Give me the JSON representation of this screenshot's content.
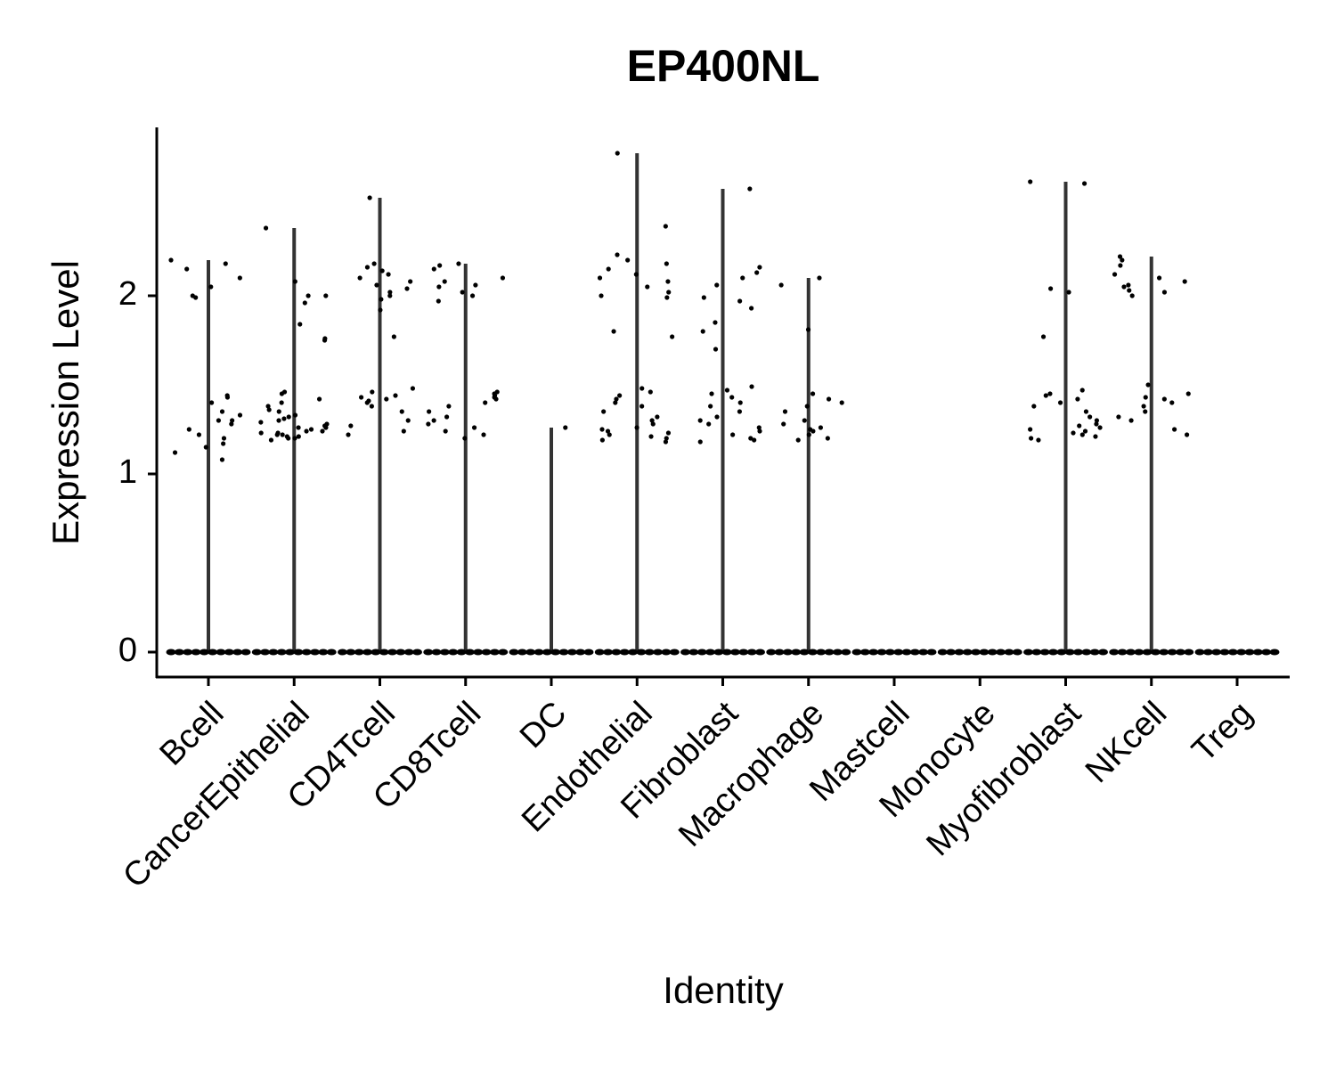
{
  "chart_data": {
    "type": "violin",
    "title": "EP400NL",
    "x_label": "Identity",
    "y_label": "Expression Level",
    "categories": [
      "Bcell",
      "CancerEpithelial",
      "CD4Tcell",
      "CD8Tcell",
      "DC",
      "Endothelial",
      "Fibroblast",
      "Macrophage",
      "Mastcell",
      "Monocyte",
      "Myofibroblast",
      "NKcell",
      "Treg"
    ],
    "values": [
      [
        2.2,
        2.1,
        2.0,
        2.15,
        2.18,
        2.05,
        1.99,
        1.44,
        1.43,
        1.4,
        1.35,
        1.3,
        1.3,
        1.25,
        1.22,
        1.2,
        1.17,
        1.12,
        1.08,
        1.15,
        1.33,
        1.28,
        0,
        0,
        0,
        0,
        0,
        0,
        0,
        0,
        0,
        0
      ],
      [
        2.38,
        2.08,
        2.0,
        2.0,
        1.96,
        1.84,
        1.76,
        1.75,
        1.46,
        1.45,
        1.42,
        1.4,
        1.38,
        1.35,
        1.32,
        1.3,
        1.28,
        1.26,
        1.25,
        1.24,
        1.23,
        1.22,
        1.21,
        1.2,
        1.2,
        1.19,
        1.27,
        1.29,
        1.31,
        1.22,
        1.24,
        1.26,
        1.33,
        1.36,
        1.21,
        1.23,
        0,
        0,
        0,
        0,
        0,
        0,
        0,
        0,
        0,
        0
      ],
      [
        2.55,
        2.18,
        2.16,
        2.14,
        2.12,
        2.1,
        2.08,
        2.06,
        2.04,
        2.02,
        2.0,
        1.98,
        1.92,
        1.77,
        1.48,
        1.46,
        1.44,
        1.43,
        1.42,
        1.41,
        1.4,
        1.38,
        1.35,
        1.3,
        1.27,
        1.24,
        1.22,
        0,
        0,
        0,
        0,
        0,
        0,
        0,
        0,
        0,
        0
      ],
      [
        2.18,
        2.17,
        2.15,
        2.1,
        2.08,
        2.06,
        2.05,
        2.02,
        2.0,
        1.97,
        1.46,
        1.45,
        1.44,
        1.43,
        1.42,
        1.4,
        1.38,
        1.35,
        1.32,
        1.3,
        1.28,
        1.26,
        1.24,
        1.22,
        1.2,
        0,
        0,
        0,
        0,
        0,
        0,
        0,
        0,
        0,
        0
      ],
      [
        1.26,
        0,
        0,
        0,
        0,
        0,
        0,
        0,
        0,
        0,
        0
      ],
      [
        2.8,
        2.39,
        2.23,
        2.2,
        2.18,
        2.15,
        2.12,
        2.1,
        2.08,
        2.05,
        2.02,
        2.0,
        1.99,
        1.8,
        1.77,
        1.48,
        1.46,
        1.44,
        1.42,
        1.4,
        1.38,
        1.35,
        1.32,
        1.3,
        1.28,
        1.26,
        1.25,
        1.24,
        1.23,
        1.22,
        1.21,
        1.2,
        1.19,
        1.18,
        0,
        0,
        0,
        0,
        0,
        0,
        0,
        0,
        0,
        0
      ],
      [
        2.6,
        2.16,
        2.13,
        2.1,
        2.06,
        1.99,
        1.97,
        1.93,
        1.85,
        1.8,
        1.7,
        1.49,
        1.47,
        1.45,
        1.43,
        1.4,
        1.38,
        1.35,
        1.32,
        1.3,
        1.28,
        1.26,
        1.24,
        1.22,
        1.2,
        1.19,
        1.18,
        0,
        0,
        0,
        0,
        0,
        0,
        0,
        0,
        0,
        0
      ],
      [
        2.1,
        2.06,
        1.81,
        1.45,
        1.42,
        1.4,
        1.38,
        1.35,
        1.3,
        1.28,
        1.26,
        1.25,
        1.24,
        1.22,
        1.2,
        1.19,
        0,
        0,
        0,
        0,
        0,
        0,
        0,
        0,
        0,
        0
      ],
      [
        0,
        0,
        0,
        0,
        0,
        0,
        0,
        0,
        0,
        0
      ],
      [
        0,
        0,
        0,
        0,
        0,
        0,
        0,
        0,
        0,
        0
      ],
      [
        2.63,
        2.64,
        2.04,
        2.02,
        1.77,
        1.47,
        1.45,
        1.44,
        1.42,
        1.4,
        1.38,
        1.35,
        1.32,
        1.3,
        1.28,
        1.27,
        1.26,
        1.25,
        1.24,
        1.23,
        1.22,
        1.21,
        1.2,
        1.19,
        0,
        0,
        0,
        0,
        0,
        0,
        0,
        0,
        0,
        0
      ],
      [
        2.22,
        2.2,
        2.17,
        2.12,
        2.1,
        2.08,
        2.06,
        2.05,
        2.03,
        2.02,
        2.0,
        1.5,
        1.45,
        1.43,
        1.42,
        1.4,
        1.38,
        1.35,
        1.32,
        1.3,
        1.25,
        1.22,
        0,
        0,
        0,
        0,
        0,
        0,
        0,
        0,
        0,
        0
      ],
      [
        0,
        0,
        0,
        0,
        0,
        0,
        0,
        0,
        0,
        0
      ]
    ],
    "color": "#000000",
    "violin_color": "#333333",
    "ylim": [
      -0.14,
      2.945
    ],
    "yticks": [
      0,
      1,
      2
    ]
  }
}
